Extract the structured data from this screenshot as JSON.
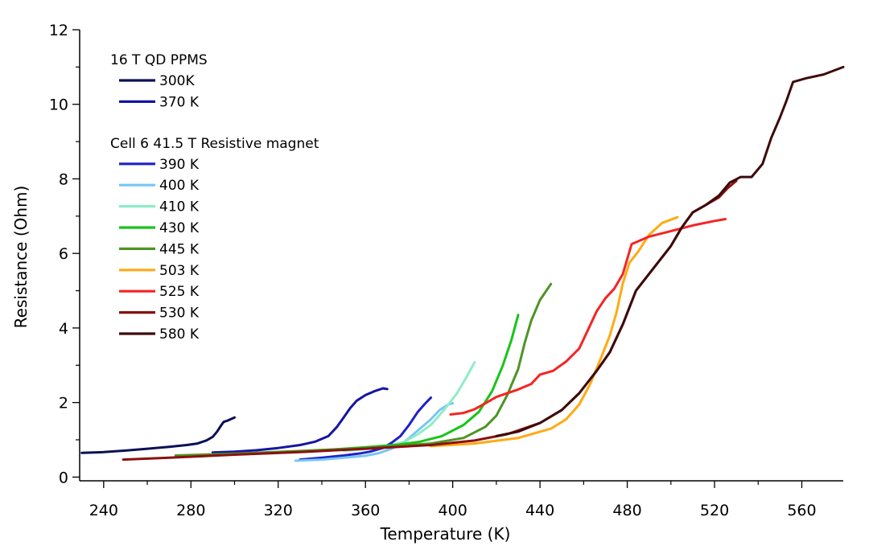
{
  "chart_data": {
    "type": "line",
    "xlabel": "Temperature (K)",
    "ylabel": "Resistance (Ohm)",
    "xlim": [
      229,
      579
    ],
    "ylim": [
      -0.1,
      12
    ],
    "xticks": [
      240,
      280,
      320,
      360,
      400,
      440,
      480,
      520,
      560
    ],
    "yticks": [
      0,
      2,
      4,
      6,
      8,
      10,
      12
    ],
    "xticks_minor": [
      260,
      300,
      340,
      380,
      420,
      460,
      500,
      540,
      580
    ],
    "yticks_minor": [
      1,
      3,
      5,
      7,
      9,
      11
    ],
    "grid": false,
    "legend": {
      "placement": "top-left",
      "groups": [
        {
          "title": "16 T QD PPMS",
          "entries": [
            0,
            1
          ]
        },
        {
          "title": "Cell 6 41.5 T Resistive magnet",
          "entries": [
            2,
            3,
            4,
            5,
            6,
            7,
            8,
            9,
            10
          ]
        }
      ]
    },
    "series": [
      {
        "name": "300K",
        "color": "#0b1055",
        "points": [
          [
            230,
            0.65
          ],
          [
            240,
            0.67
          ],
          [
            250,
            0.71
          ],
          [
            260,
            0.76
          ],
          [
            270,
            0.81
          ],
          [
            278,
            0.86
          ],
          [
            283,
            0.9
          ],
          [
            287,
            0.98
          ],
          [
            290,
            1.08
          ],
          [
            292,
            1.22
          ],
          [
            294,
            1.4
          ],
          [
            295,
            1.48
          ],
          [
            297,
            1.52
          ],
          [
            300,
            1.6
          ]
        ]
      },
      {
        "name": "370 K",
        "color": "#1515a3",
        "points": [
          [
            290,
            0.66
          ],
          [
            300,
            0.68
          ],
          [
            310,
            0.72
          ],
          [
            320,
            0.78
          ],
          [
            330,
            0.86
          ],
          [
            337,
            0.95
          ],
          [
            343,
            1.1
          ],
          [
            347,
            1.35
          ],
          [
            350,
            1.6
          ],
          [
            353,
            1.85
          ],
          [
            356,
            2.05
          ],
          [
            360,
            2.2
          ],
          [
            364,
            2.3
          ],
          [
            368,
            2.38
          ],
          [
            370,
            2.36
          ]
        ]
      },
      {
        "name": "390 K",
        "color": "#1e22c8",
        "points": [
          [
            330,
            0.47
          ],
          [
            340,
            0.52
          ],
          [
            350,
            0.58
          ],
          [
            358,
            0.64
          ],
          [
            362,
            0.68
          ],
          [
            368,
            0.78
          ],
          [
            372,
            0.92
          ],
          [
            376,
            1.1
          ],
          [
            380,
            1.4
          ],
          [
            384,
            1.75
          ],
          [
            387,
            1.95
          ],
          [
            390,
            2.13
          ]
        ]
      },
      {
        "name": "400 K",
        "color": "#78c6f2",
        "points": [
          [
            328,
            0.44
          ],
          [
            340,
            0.47
          ],
          [
            350,
            0.52
          ],
          [
            360,
            0.57
          ],
          [
            366,
            0.64
          ],
          [
            372,
            0.76
          ],
          [
            378,
            0.95
          ],
          [
            384,
            1.25
          ],
          [
            390,
            1.55
          ],
          [
            394,
            1.8
          ],
          [
            398,
            1.95
          ],
          [
            400,
            1.98
          ]
        ]
      },
      {
        "name": "410 K",
        "color": "#8fecc7",
        "points": [
          [
            350,
            0.7
          ],
          [
            360,
            0.75
          ],
          [
            370,
            0.82
          ],
          [
            378,
            0.95
          ],
          [
            384,
            1.15
          ],
          [
            390,
            1.4
          ],
          [
            396,
            1.8
          ],
          [
            402,
            2.25
          ],
          [
            406,
            2.65
          ],
          [
            410,
            3.08
          ]
        ]
      },
      {
        "name": "430 K",
        "color": "#18c418",
        "points": [
          [
            300,
            0.62
          ],
          [
            320,
            0.67
          ],
          [
            340,
            0.72
          ],
          [
            360,
            0.8
          ],
          [
            375,
            0.87
          ],
          [
            385,
            0.95
          ],
          [
            395,
            1.1
          ],
          [
            405,
            1.4
          ],
          [
            412,
            1.75
          ],
          [
            418,
            2.3
          ],
          [
            423,
            3.0
          ],
          [
            427,
            3.7
          ],
          [
            430,
            4.35
          ]
        ]
      },
      {
        "name": "445 K",
        "color": "#4e9424",
        "points": [
          [
            273,
            0.58
          ],
          [
            300,
            0.63
          ],
          [
            330,
            0.7
          ],
          [
            360,
            0.78
          ],
          [
            390,
            0.9
          ],
          [
            405,
            1.05
          ],
          [
            415,
            1.35
          ],
          [
            420,
            1.65
          ],
          [
            425,
            2.2
          ],
          [
            430,
            2.9
          ],
          [
            433,
            3.6
          ],
          [
            436,
            4.2
          ],
          [
            440,
            4.75
          ],
          [
            445,
            5.18
          ]
        ]
      },
      {
        "name": "503 K",
        "color": "#ffaa14",
        "points": [
          [
            390,
            0.83
          ],
          [
            410,
            0.9
          ],
          [
            430,
            1.05
          ],
          [
            445,
            1.3
          ],
          [
            452,
            1.55
          ],
          [
            458,
            1.95
          ],
          [
            463,
            2.5
          ],
          [
            468,
            3.2
          ],
          [
            472,
            3.8
          ],
          [
            475,
            4.4
          ],
          [
            478,
            5.2
          ],
          [
            481,
            5.75
          ],
          [
            485,
            6.05
          ],
          [
            490,
            6.5
          ],
          [
            496,
            6.82
          ],
          [
            503,
            6.97
          ]
        ]
      },
      {
        "name": "525 K",
        "color": "#f52424",
        "points": [
          [
            399,
            1.68
          ],
          [
            405,
            1.72
          ],
          [
            410,
            1.82
          ],
          [
            415,
            1.98
          ],
          [
            420,
            2.15
          ],
          [
            430,
            2.35
          ],
          [
            436,
            2.5
          ],
          [
            440,
            2.75
          ],
          [
            446,
            2.85
          ],
          [
            452,
            3.1
          ],
          [
            458,
            3.45
          ],
          [
            462,
            3.95
          ],
          [
            466,
            4.45
          ],
          [
            470,
            4.8
          ],
          [
            474,
            5.05
          ],
          [
            478,
            5.45
          ],
          [
            482,
            6.25
          ],
          [
            490,
            6.45
          ],
          [
            500,
            6.6
          ],
          [
            510,
            6.75
          ],
          [
            520,
            6.87
          ],
          [
            525,
            6.92
          ]
        ]
      },
      {
        "name": "530 K",
        "color": "#8c1010",
        "points": [
          [
            249,
            0.47
          ],
          [
            270,
            0.52
          ],
          [
            300,
            0.6
          ],
          [
            330,
            0.67
          ],
          [
            360,
            0.76
          ],
          [
            390,
            0.86
          ],
          [
            410,
            0.98
          ],
          [
            425,
            1.15
          ],
          [
            440,
            1.45
          ],
          [
            450,
            1.8
          ],
          [
            458,
            2.25
          ],
          [
            466,
            2.85
          ],
          [
            472,
            3.35
          ],
          [
            478,
            4.1
          ],
          [
            484,
            5.0
          ],
          [
            492,
            5.6
          ],
          [
            500,
            6.2
          ],
          [
            505,
            6.7
          ],
          [
            510,
            7.1
          ],
          [
            516,
            7.3
          ],
          [
            522,
            7.5
          ],
          [
            526,
            7.75
          ],
          [
            530,
            7.95
          ]
        ]
      },
      {
        "name": "580 K",
        "color": "#3d0b0b",
        "points": [
          [
            420,
            1.1
          ],
          [
            430,
            1.22
          ],
          [
            440,
            1.45
          ],
          [
            450,
            1.8
          ],
          [
            458,
            2.25
          ],
          [
            466,
            2.85
          ],
          [
            472,
            3.35
          ],
          [
            478,
            4.1
          ],
          [
            484,
            5.0
          ],
          [
            492,
            5.6
          ],
          [
            500,
            6.2
          ],
          [
            505,
            6.7
          ],
          [
            510,
            7.1
          ],
          [
            516,
            7.3
          ],
          [
            522,
            7.55
          ],
          [
            527,
            7.9
          ],
          [
            532,
            8.05
          ],
          [
            537,
            8.05
          ],
          [
            542,
            8.4
          ],
          [
            546,
            9.1
          ],
          [
            550,
            9.65
          ],
          [
            553,
            10.1
          ],
          [
            556,
            10.6
          ],
          [
            562,
            10.7
          ],
          [
            570,
            10.8
          ],
          [
            579,
            11.0
          ]
        ]
      }
    ]
  }
}
